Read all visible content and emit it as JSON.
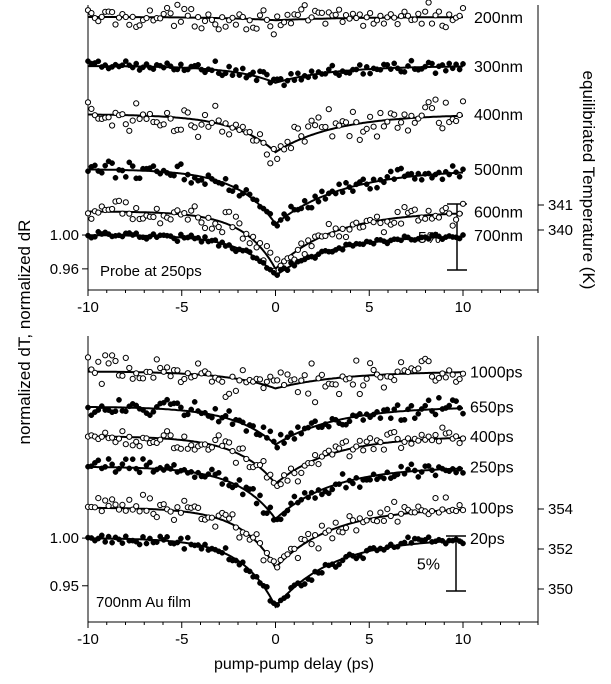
{
  "figure": {
    "ylabel_left": "normalized dT, normalized dR",
    "ylabel_right": "equilibriated Temperature (K)",
    "xlabel": "pump-pump delay (ps)"
  },
  "chart_data": [
    {
      "type": "scatter",
      "panel": "top",
      "annotation": "Probe at 250ps",
      "scale_bar_label": "5%",
      "scale_bar_fraction": 0.05,
      "x_ticks": [
        "-10",
        "-5",
        "0",
        "5",
        "10"
      ],
      "xlim": [
        -10,
        14
      ],
      "left_ticks": [
        {
          "label": "1.00",
          "value": 1.0
        },
        {
          "label": "0.96",
          "value": 0.96
        }
      ],
      "right_ticks": [
        {
          "label": "341",
          "value": 341
        },
        {
          "label": "340",
          "value": 340
        }
      ],
      "series": [
        {
          "name": "200nm",
          "marker": "open",
          "baseline": 1.258,
          "depth": 0.004,
          "tau_left": 3.0,
          "tau_right": 4.0,
          "noise": 0.009
        },
        {
          "name": "300nm",
          "marker": "filled",
          "baseline": 1.2,
          "depth": 0.02,
          "tau_left": 2.2,
          "tau_right": 3.0,
          "noise": 0.006
        },
        {
          "name": "400nm",
          "marker": "open",
          "baseline": 1.143,
          "depth": 0.045,
          "tau_left": 2.2,
          "tau_right": 3.2,
          "noise": 0.014
        },
        {
          "name": "500nm",
          "marker": "filled",
          "baseline": 1.078,
          "depth": 0.065,
          "tau_left": 2.0,
          "tau_right": 3.6,
          "noise": 0.007
        },
        {
          "name": "600nm",
          "marker": "open",
          "baseline": 1.028,
          "depth": 0.068,
          "tau_left": 1.7,
          "tau_right": 3.0,
          "noise": 0.009
        },
        {
          "name": "700nm",
          "marker": "filled",
          "baseline": 1.0,
          "depth": 0.048,
          "tau_left": 1.8,
          "tau_right": 3.0,
          "noise": 0.003
        }
      ]
    },
    {
      "type": "scatter",
      "panel": "bottom",
      "annotation": "700nm Au film",
      "scale_bar_label": "5%",
      "scale_bar_fraction": 0.05,
      "x_ticks": [
        "-10",
        "-5",
        "0",
        "5",
        "10"
      ],
      "xlim": [
        -10,
        14
      ],
      "left_ticks": [
        {
          "label": "1.00",
          "value": 1.0
        },
        {
          "label": "0.95",
          "value": 0.95
        }
      ],
      "right_ticks": [
        {
          "label": "354",
          "value": 354
        },
        {
          "label": "352",
          "value": 352
        },
        {
          "label": "350",
          "value": 350
        }
      ],
      "series": [
        {
          "name": "1000ps",
          "marker": "open",
          "baseline": 1.175,
          "depth": 0.018,
          "tau_left": 2.5,
          "tau_right": 3.5,
          "noise": 0.012
        },
        {
          "name": "650ps",
          "marker": "filled",
          "baseline": 1.138,
          "depth": 0.04,
          "tau_left": 2.2,
          "tau_right": 3.2,
          "noise": 0.007
        },
        {
          "name": "400ps",
          "marker": "open",
          "baseline": 1.107,
          "depth": 0.05,
          "tau_left": 2.0,
          "tau_right": 3.0,
          "noise": 0.008
        },
        {
          "name": "250ps",
          "marker": "filled",
          "baseline": 1.075,
          "depth": 0.055,
          "tau_left": 2.0,
          "tau_right": 3.0,
          "noise": 0.006
        },
        {
          "name": "100ps",
          "marker": "open",
          "baseline": 1.032,
          "depth": 0.063,
          "tau_left": 1.8,
          "tau_right": 3.0,
          "noise": 0.008
        },
        {
          "name": "20ps",
          "marker": "filled",
          "baseline": 1.0,
          "depth": 0.072,
          "tau_left": 1.8,
          "tau_right": 3.0,
          "noise": 0.004
        }
      ]
    }
  ]
}
